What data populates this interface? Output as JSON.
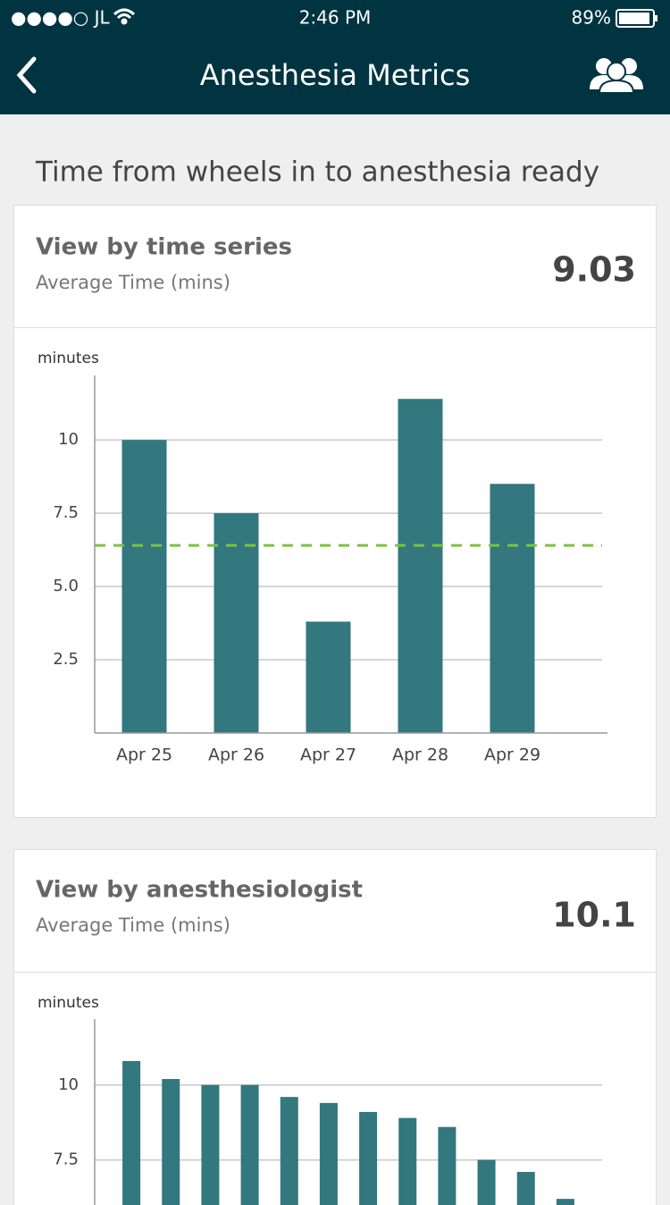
{
  "status_bar": {
    "carrier": "●●●●○ JL",
    "time": "2:46 PM",
    "battery": "89%"
  },
  "nav": {
    "title": "Anesthesia Metrics"
  },
  "section_title": "Time from wheels in to anesthesia ready",
  "cards": [
    {
      "title": "View by time series",
      "subtitle": "Average Time (mins)",
      "metric": "9.03"
    },
    {
      "title": "View by anesthesiologist",
      "subtitle": "Average Time (mins)",
      "metric": "10.1"
    }
  ],
  "chart_data": [
    {
      "type": "bar",
      "y_label": "minutes",
      "categories": [
        "Apr 25",
        "Apr 26",
        "Apr 27",
        "Apr 28",
        "Apr 29"
      ],
      "values": [
        10.0,
        7.5,
        3.8,
        11.4,
        8.5
      ],
      "color": "#33777f",
      "reference_line": {
        "value": 6.4,
        "color": "#7cc242"
      },
      "ylim": [
        0,
        12.2
      ],
      "yticks": [
        {
          "value": 2.5,
          "label": "2.5"
        },
        {
          "value": 5,
          "label": "5.0"
        },
        7.5,
        10
      ],
      "grid": true
    },
    {
      "type": "bar",
      "y_label": "minutes",
      "categories": [
        null,
        null,
        null,
        null,
        null,
        null,
        null,
        null,
        null,
        null,
        null,
        null
      ],
      "values": [
        10.8,
        10.2,
        10.0,
        10.0,
        9.6,
        9.4,
        9.1,
        8.9,
        8.6,
        7.5,
        7.1,
        6.2
      ],
      "color": "#33777f",
      "ylim": [
        0,
        12.2
      ],
      "yticks": [
        7.5,
        10
      ],
      "grid": true
    }
  ]
}
